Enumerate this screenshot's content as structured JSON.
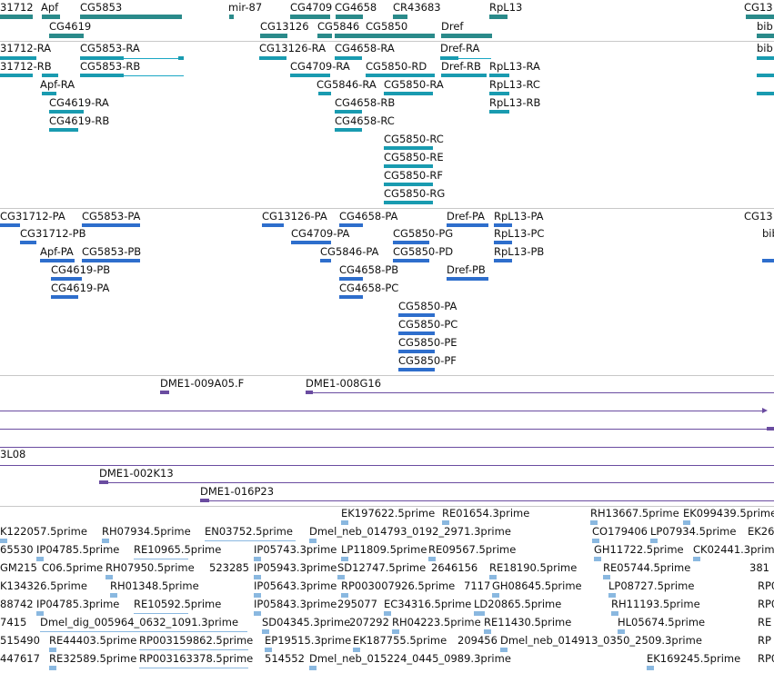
{
  "track_gene_span": {
    "labels": [
      "31712",
      "Apf",
      "CG5853",
      "mir-87",
      "CG4709",
      "CG4658",
      "CR43683",
      "RpL13",
      "CG13",
      "CG4619",
      "CG13126",
      "CG5846",
      "CG5850",
      "Dref",
      "bib"
    ]
  },
  "track_transcripts_ra": {
    "labels": [
      "31712-RA",
      "CG5853-RA",
      "CG13126-RA",
      "CG4658-RA",
      "Dref-RA",
      "bib",
      "31712-RB",
      "CG5853-RB",
      "CG4709-RA",
      "CG5850-RD",
      "Dref-RB",
      "RpL13-RA",
      "Apf-RA",
      "CG5846-RA",
      "CG5850-RA",
      "RpL13-RC",
      "CG4619-RA",
      "CG4658-RB",
      "RpL13-RB",
      "CG4619-RB",
      "CG4658-RC",
      "CG5850-RC",
      "CG5850-RE",
      "CG5850-RF",
      "CG5850-RG"
    ]
  },
  "track_proteins_pa": {
    "labels": [
      "CG31712-PA",
      "CG5853-PA",
      "CG13126-PA",
      "CG4658-PA",
      "Dref-PA",
      "RpL13-PA",
      "CG13",
      "CG31712-PB",
      "CG4709-PA",
      "CG5850-PG",
      "RpL13-PC",
      "bib",
      "Apf-PA",
      "CG5853-PB",
      "CG5846-PA",
      "CG5850-PD",
      "RpL13-PB",
      "CG4619-PB",
      "CG4658-PB",
      "Dref-PB",
      "CG4619-PA",
      "CG4658-PC",
      "CG5850-PA",
      "CG5850-PC",
      "CG5850-PE",
      "CG5850-PF"
    ]
  },
  "track_clones": {
    "labels": [
      "DME1-009A05.F",
      "DME1-008G16",
      "3L08",
      "DME1-002K13",
      "DME1-016P23"
    ]
  },
  "track_est": {
    "labels": [
      "EK197622.5prime",
      "RE01654.3prime",
      "RH13667.5prime",
      "EK099439.5prime",
      "K122057.5prime",
      "RH07934.5prime",
      "EN03752.5prime",
      "Dmel_neb_014793_0192_2971.3prime",
      "CO179406",
      "LP07934.5prime",
      "EK26",
      "65530",
      "IP04785.5prime",
      "RE10965.5prime",
      "IP05743.3prime",
      "LP11809.5prime",
      "RE09567.5prime",
      "GH11722.5prime",
      "CK02441.3prime",
      "GM215",
      "C06.5prime",
      "RH07950.5prime",
      "523285",
      "IP05943.3prime",
      "SD12747.5prime",
      "2646156",
      "RE18190.5prime",
      "RE05744.5prime",
      "381",
      "K134326.5prime",
      "RH01348.5prime",
      "IP05643.3prime",
      "RP003007926.5prime",
      "7117",
      "GH08645.5prime",
      "LP08727.5prime",
      "RP0",
      "88742",
      "IP04785.3prime",
      "RE10592.5prime",
      "IP05843.3prime",
      "295077",
      "EC34316.5prime",
      "LD20865.5prime",
      "RH11193.5prime",
      "RP0",
      "7415",
      "Dmel_dig_005964_0632_1091.3prime",
      "SD04345.3prime",
      "207292",
      "RH04223.5prime",
      "RE11430.5prime",
      "HL05674.5prime",
      "RE",
      "515490",
      "RE44403.5prime",
      "RP003159862.5prime",
      "EP19515.3prime",
      "EK187755.5prime",
      "209456",
      "Dmel_neb_014913_0350_2509.3prime",
      "RP",
      "447617",
      "RE32589.5prime",
      "RP003163378.5prime",
      "514552",
      "Dmel_neb_015224_0445_0989.3prime",
      "EK169245.5prime",
      "RP0"
    ]
  },
  "colors": {
    "gene": "#2a8a8a",
    "transcript": "#199bb0",
    "protein": "#2e6ecc",
    "clone": "#6a4ca0",
    "est": "#8ab8e0",
    "separator": "#c8c8c8"
  }
}
